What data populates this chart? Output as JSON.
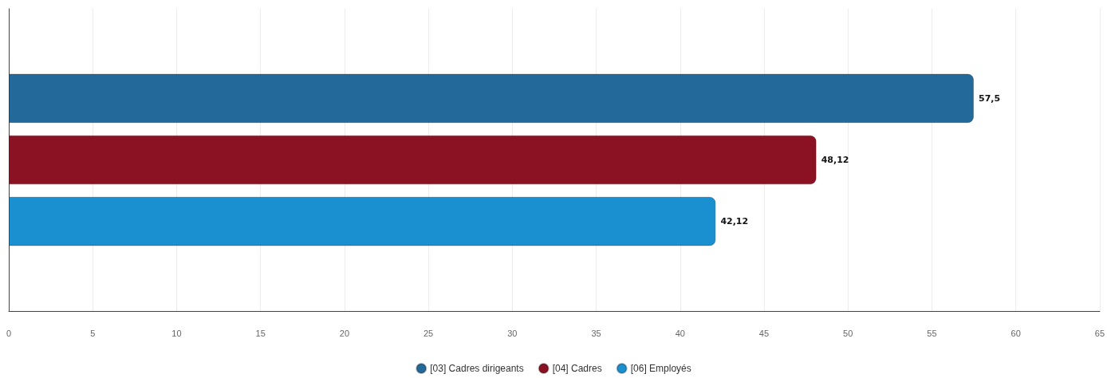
{
  "chart_data": {
    "type": "bar",
    "orientation": "horizontal",
    "categories": [
      null
    ],
    "series": [
      {
        "name": "[03] Cadres dirigeants",
        "color": "#236a9a",
        "values": [
          57.5
        ],
        "value_labels": [
          "57,5"
        ]
      },
      {
        "name": "[04] Cadres",
        "color": "#8a1222",
        "values": [
          48.12
        ],
        "value_labels": [
          "48,12"
        ]
      },
      {
        "name": "[06] Employés",
        "color": "#1b90d0",
        "values": [
          42.12
        ],
        "value_labels": [
          "42,12"
        ]
      }
    ],
    "xlim": [
      0,
      65
    ],
    "xticks": [
      0,
      5,
      10,
      15,
      20,
      25,
      30,
      35,
      40,
      45,
      50,
      55,
      60,
      65
    ],
    "grid": "x",
    "legend": "bottom"
  }
}
